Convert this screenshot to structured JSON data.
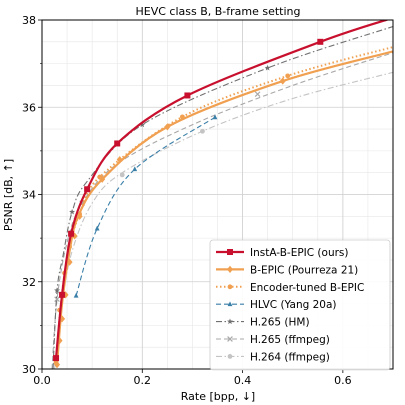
{
  "chart_data": {
    "type": "line",
    "title": "HEVC class B, B-frame setting",
    "xlabel": "Rate [bpp, ↓]",
    "ylabel": "PSNR [dB, ↑]",
    "xlim": [
      0.0,
      0.7
    ],
    "ylim": [
      30,
      38
    ],
    "xticks": [
      0.0,
      0.2,
      0.4,
      0.6
    ],
    "xtick_labels": [
      "0.0",
      "0.2",
      "0.4",
      "0.6"
    ],
    "yticks": [
      30,
      32,
      34,
      36,
      38
    ],
    "ytick_labels": [
      "30",
      "32",
      "34",
      "36",
      "38"
    ],
    "grid": true,
    "legend_position": "lower-right",
    "series": [
      {
        "name": "InstA-B-EPIC (ours)",
        "color": "#c8102e",
        "line_style": "solid",
        "marker": "square",
        "emphasis": true,
        "x": [
          0.028,
          0.04,
          0.058,
          0.09,
          0.15,
          0.29,
          0.555,
          0.7
        ],
        "y": [
          30.25,
          31.7,
          33.1,
          34.12,
          35.17,
          36.27,
          37.5,
          38.05
        ],
        "marker_points": [
          [
            0.028,
            30.25
          ],
          [
            0.04,
            31.7
          ],
          [
            0.058,
            33.1
          ],
          [
            0.09,
            34.12
          ],
          [
            0.15,
            35.17
          ],
          [
            0.29,
            36.27
          ],
          [
            0.555,
            37.5
          ]
        ]
      },
      {
        "name": "B-EPIC (Pourreza 21)",
        "color": "#f0a050",
        "line_style": "solid",
        "marker": "diamond",
        "emphasis": true,
        "x": [
          0.03,
          0.04,
          0.055,
          0.072,
          0.12,
          0.25,
          0.48,
          0.7
        ],
        "y": [
          30.1,
          31.5,
          32.7,
          33.5,
          34.35,
          35.55,
          36.6,
          37.28
        ],
        "marker_points": [
          [
            0.03,
            30.1
          ],
          [
            0.035,
            30.65
          ],
          [
            0.04,
            31.15
          ],
          [
            0.047,
            31.7
          ],
          [
            0.055,
            32.45
          ],
          [
            0.065,
            33.05
          ],
          [
            0.075,
            33.5
          ],
          [
            0.12,
            34.35
          ],
          [
            0.155,
            34.8
          ],
          [
            0.25,
            35.55
          ],
          [
            0.48,
            36.6
          ]
        ]
      },
      {
        "name": "Encoder-tuned B-EPIC",
        "color": "#f0a050",
        "line_style": "dotted",
        "marker": "circle",
        "x": [
          0.028,
          0.04,
          0.055,
          0.075,
          0.115,
          0.28,
          0.49,
          0.7
        ],
        "y": [
          30.15,
          31.75,
          32.8,
          33.55,
          34.4,
          35.78,
          36.72,
          37.38
        ],
        "marker_points": [
          [
            0.028,
            30.15
          ],
          [
            0.035,
            31.35
          ],
          [
            0.045,
            32.2
          ],
          [
            0.055,
            32.8
          ],
          [
            0.075,
            33.55
          ],
          [
            0.115,
            34.4
          ],
          [
            0.28,
            35.78
          ],
          [
            0.49,
            36.72
          ]
        ]
      },
      {
        "name": "HLVC (Yang 20a)",
        "color": "#3a7fa8",
        "line_style": "dashed",
        "marker": "triangle",
        "x": [
          0.068,
          0.11,
          0.185,
          0.345
        ],
        "y": [
          31.68,
          33.22,
          34.58,
          35.77
        ],
        "marker_points": [
          [
            0.068,
            31.68
          ],
          [
            0.11,
            33.22
          ],
          [
            0.185,
            34.58
          ],
          [
            0.345,
            35.77
          ]
        ]
      },
      {
        "name": "H.265 (HM)",
        "color": "#707070",
        "line_style": "dashdot",
        "marker": "star",
        "x": [
          0.022,
          0.03,
          0.042,
          0.06,
          0.09,
          0.2,
          0.45,
          0.7
        ],
        "y": [
          30.0,
          31.8,
          32.6,
          33.6,
          34.3,
          35.6,
          36.9,
          37.85
        ],
        "marker_points": [
          [
            0.03,
            31.8
          ],
          [
            0.06,
            33.6
          ],
          [
            0.2,
            35.6
          ],
          [
            0.45,
            36.9
          ]
        ]
      },
      {
        "name": "H.265 (ffmpeg)",
        "color": "#a8a8a8",
        "line_style": "dashed",
        "marker": "x",
        "x": [
          0.02,
          0.03,
          0.05,
          0.08,
          0.15,
          0.3,
          0.5,
          0.7
        ],
        "y": [
          30.0,
          31.6,
          32.9,
          33.8,
          34.7,
          35.6,
          36.5,
          37.25
        ],
        "marker_points": [
          [
            0.03,
            31.6
          ],
          [
            0.08,
            33.8
          ],
          [
            0.43,
            36.3
          ]
        ]
      },
      {
        "name": "H.264 (ffmpeg)",
        "color": "#c4c4c4",
        "line_style": "dashdot",
        "marker": "circle",
        "x": [
          0.025,
          0.04,
          0.06,
          0.1,
          0.16,
          0.32,
          0.5,
          0.7
        ],
        "y": [
          30.0,
          31.5,
          32.7,
          33.8,
          34.5,
          35.45,
          36.2,
          36.8
        ],
        "marker_points": [
          [
            0.16,
            34.45
          ],
          [
            0.32,
            35.45
          ]
        ]
      }
    ]
  }
}
